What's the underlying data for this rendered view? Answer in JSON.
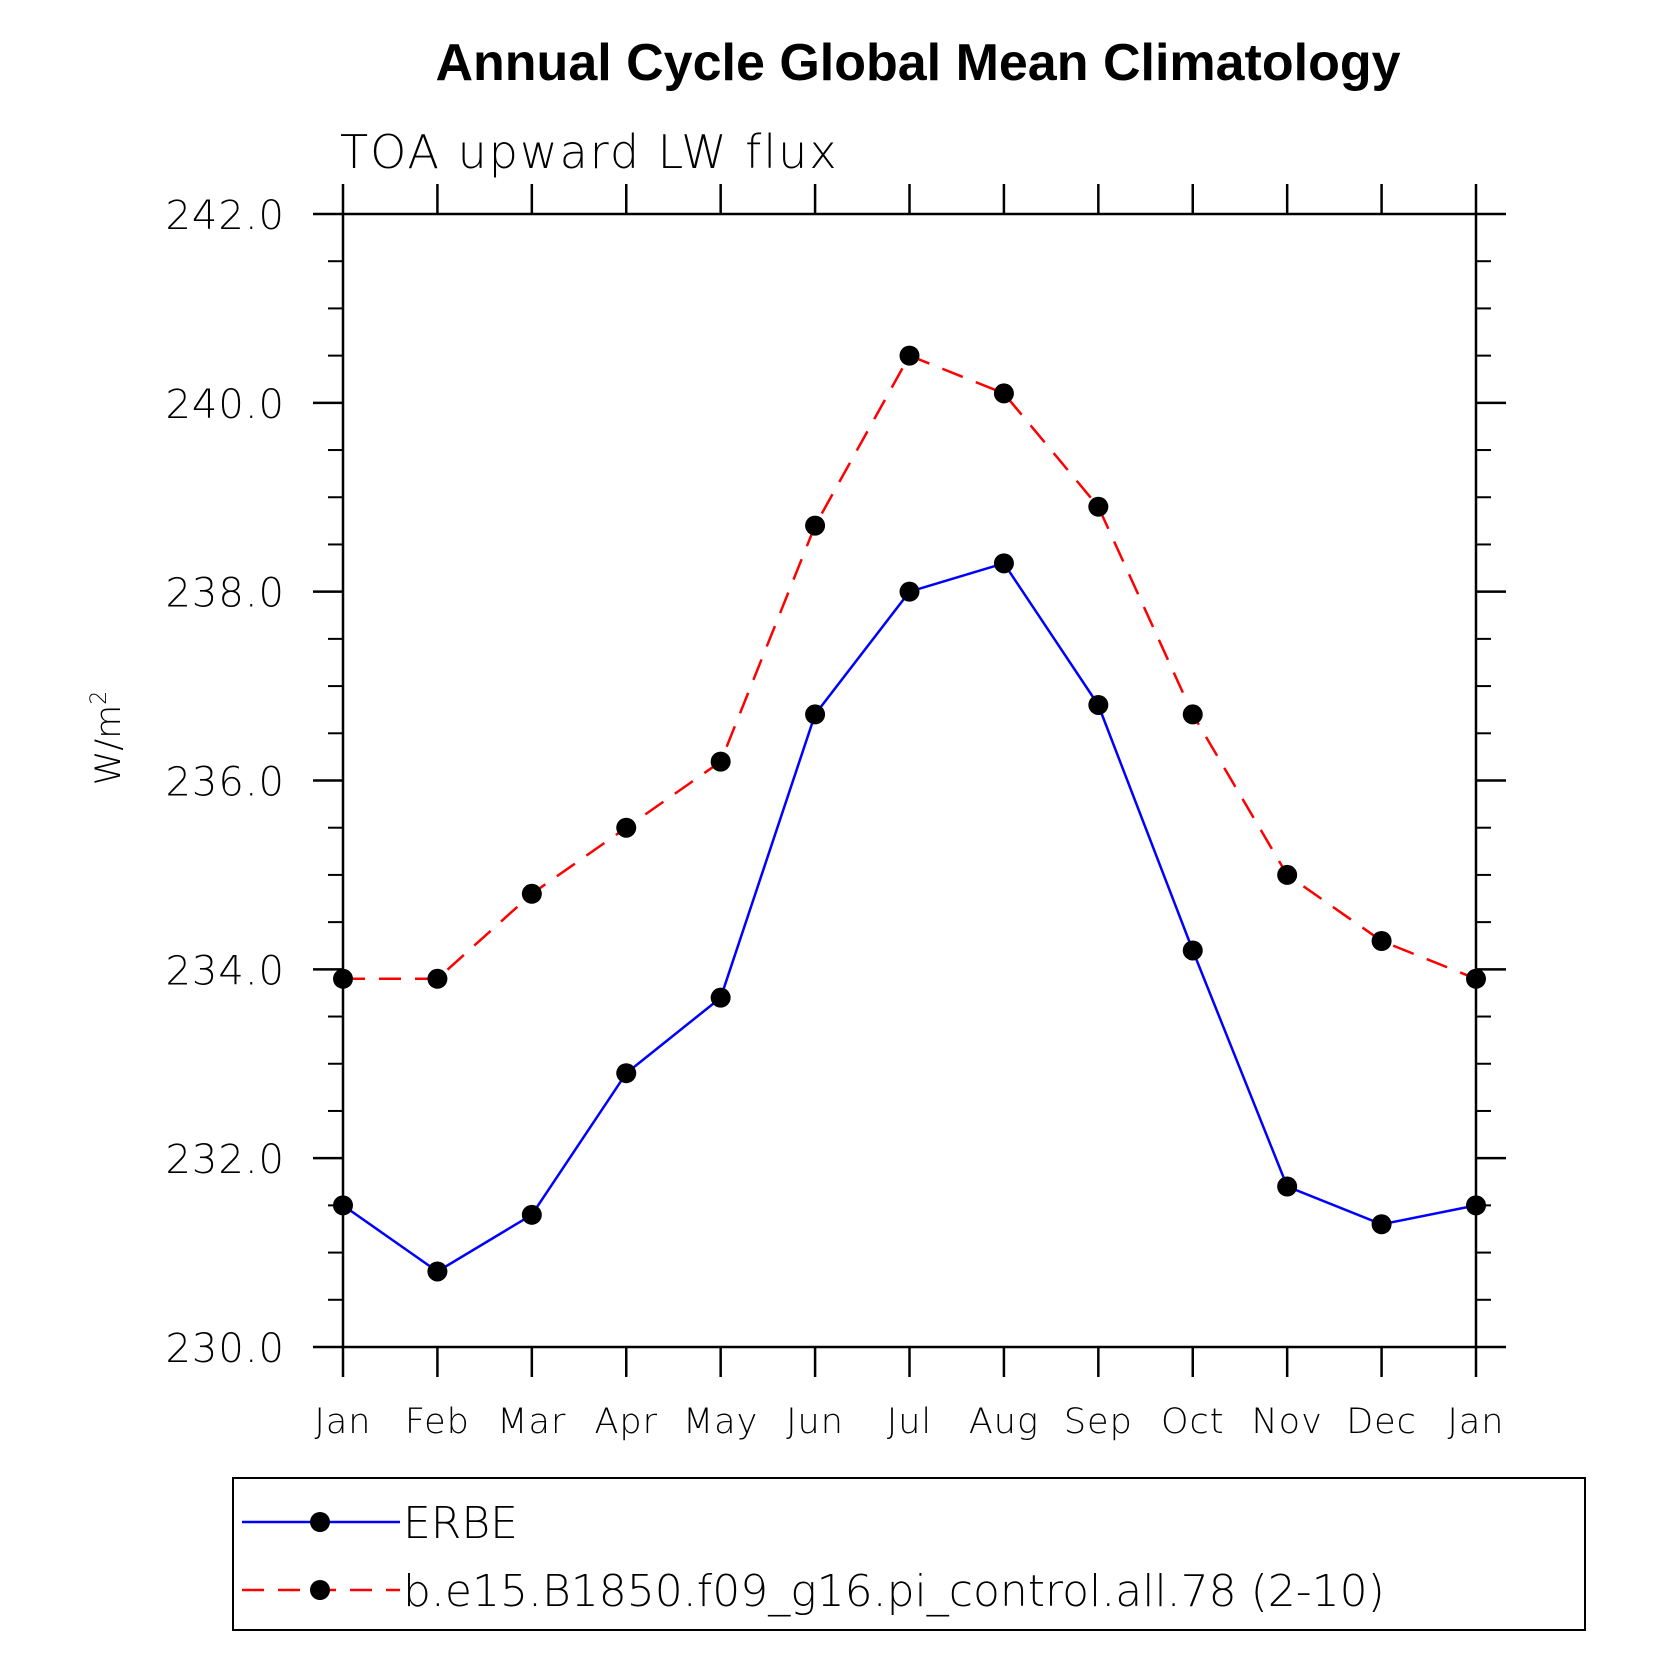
{
  "chart_data": {
    "type": "line",
    "title": "Annual Cycle Global Mean Climatology",
    "subtitle": "TOA upward LW flux",
    "ylabel": "W/m",
    "ylabel_superscript": "2",
    "xlabel": "",
    "categories": [
      "Jan",
      "Feb",
      "Mar",
      "Apr",
      "May",
      "Jun",
      "Jul",
      "Aug",
      "Sep",
      "Oct",
      "Nov",
      "Dec",
      "Jan"
    ],
    "ylim": [
      230.0,
      242.0
    ],
    "yticks": [
      "230.0",
      "232.0",
      "234.0",
      "236.0",
      "238.0",
      "240.0",
      "242.0"
    ],
    "y_minor_step": 0.5,
    "grid": false,
    "legend_position": "bottom",
    "series": [
      {
        "name": "ERBE",
        "color": "#0000ff",
        "line_style": "solid",
        "marker": "filled-circle",
        "marker_color": "#000000",
        "values": [
          231.5,
          230.8,
          231.4,
          232.9,
          233.7,
          236.7,
          238.0,
          238.3,
          236.8,
          234.2,
          231.7,
          231.3,
          231.5
        ]
      },
      {
        "name": "b.e15.B1850.f09_g16.pi_control.all.78 (2-10)",
        "color": "#ff0000",
        "line_style": "dashed",
        "marker": "filled-circle",
        "marker_color": "#000000",
        "values": [
          233.9,
          233.9,
          234.8,
          235.5,
          236.2,
          238.7,
          240.5,
          240.1,
          238.9,
          236.7,
          235.0,
          234.3,
          233.9
        ]
      }
    ]
  }
}
